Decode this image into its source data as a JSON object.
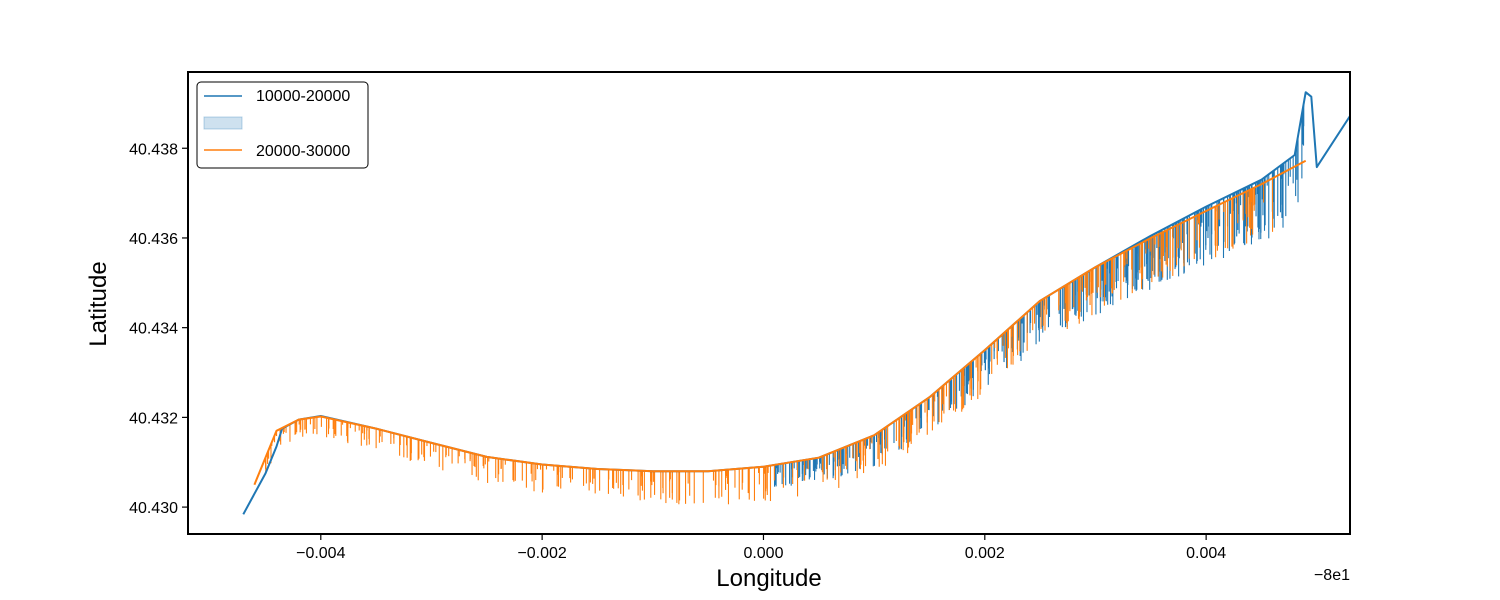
{
  "chart_data": {
    "type": "line",
    "title": "",
    "xlabel": "Longitude",
    "ylabel": "Latitude",
    "x_offset_label": "−8e1",
    "xlim": [
      -0.0052,
      0.0053
    ],
    "ylim": [
      40.4294,
      40.4397
    ],
    "x_ticks": [
      -0.004,
      -0.002,
      0.0,
      0.002,
      0.004
    ],
    "x_tick_labels": [
      "−0.004",
      "−0.002",
      "0.000",
      "0.002",
      "0.004"
    ],
    "y_ticks": [
      40.43,
      40.432,
      40.434,
      40.436,
      40.438
    ],
    "y_tick_labels": [
      "40.430",
      "40.432",
      "40.434",
      "40.436",
      "40.438"
    ],
    "grid": false,
    "legend": {
      "placement": "top-left",
      "entries": [
        {
          "label": "10000-20000",
          "kind": "line",
          "color": "#1f77b4"
        },
        {
          "label": "",
          "kind": "band",
          "color": "#1f77b4"
        },
        {
          "label": "20000-30000",
          "kind": "line",
          "color": "#ff7f0e"
        }
      ]
    },
    "series": [
      {
        "name": "10000-20000",
        "color": "#1f77b4",
        "x": [
          -0.0047,
          -0.0045,
          -0.0044,
          -0.00435,
          -0.0042,
          -0.004,
          -0.0035,
          -0.003,
          -0.0025,
          -0.002,
          -0.0015,
          -0.001,
          -0.0005,
          0.0,
          0.0005,
          0.001,
          0.0015,
          0.002,
          0.0025,
          0.003,
          0.0035,
          0.004,
          0.0045,
          0.0048,
          0.0049,
          0.00495,
          0.005,
          0.0053
        ],
        "y": [
          40.42984,
          40.43075,
          40.43135,
          40.43175,
          40.43195,
          40.43203,
          40.43175,
          40.43143,
          40.43112,
          40.43095,
          40.43085,
          40.4308,
          40.4308,
          40.4309,
          40.4311,
          40.4316,
          40.43245,
          40.4335,
          40.4346,
          40.43535,
          40.43605,
          40.4367,
          40.4373,
          40.43785,
          40.43925,
          40.43915,
          40.43758,
          40.43872
        ]
      },
      {
        "name": "20000-30000",
        "color": "#ff7f0e",
        "x": [
          -0.0046,
          -0.0044,
          -0.0042,
          -0.004,
          -0.0035,
          -0.003,
          -0.0025,
          -0.002,
          -0.0015,
          -0.001,
          -0.0005,
          0.0,
          0.0005,
          0.001,
          0.0015,
          0.002,
          0.0025,
          0.003,
          0.0035,
          0.004,
          0.0045,
          0.0049
        ],
        "y": [
          40.4305,
          40.4317,
          40.43195,
          40.43202,
          40.43175,
          40.43143,
          40.43112,
          40.43095,
          40.43085,
          40.4308,
          40.4308,
          40.4309,
          40.4311,
          40.4316,
          40.43245,
          40.4335,
          40.4346,
          40.43535,
          40.436,
          40.4366,
          40.4372,
          40.43772
        ]
      }
    ],
    "spikes": [
      {
        "name": "10000-20000",
        "color": "#1f77b4",
        "x_range": [
          0.0001,
          0.0049
        ],
        "depth_range": [
          0.0001,
          0.0015
        ]
      },
      {
        "name": "20000-30000",
        "color": "#ff7f0e",
        "x_range": [
          -0.0045,
          0.0046
        ],
        "depth_range": [
          0.0001,
          0.0012
        ]
      }
    ]
  }
}
